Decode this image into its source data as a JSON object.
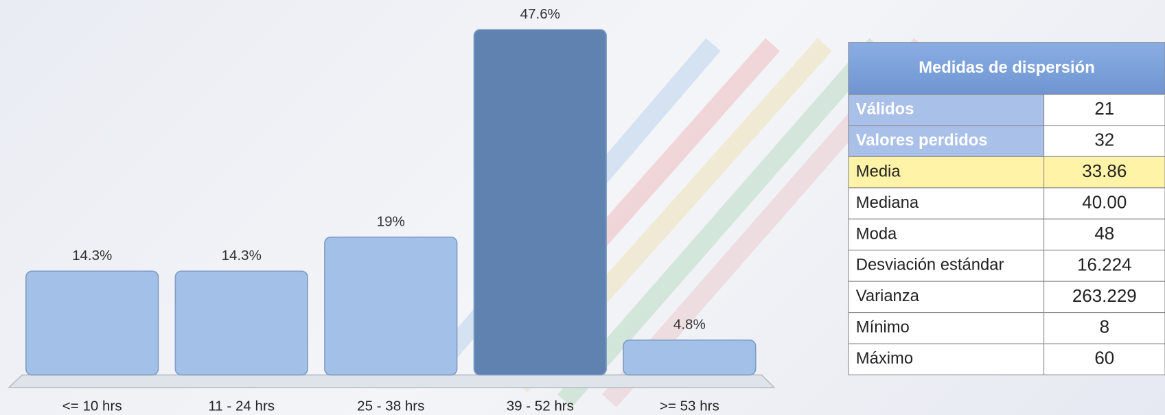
{
  "chart_data": {
    "type": "bar",
    "categories": [
      "<= 10 hrs",
      "11 - 24 hrs",
      "25 - 38 hrs",
      "39 - 52 hrs",
      ">= 53 hrs"
    ],
    "values": [
      14.3,
      14.3,
      19,
      47.6,
      4.8
    ],
    "value_labels": [
      "14.3%",
      "14.3%",
      "19%",
      "47.6%",
      "4.8%"
    ],
    "colors": [
      "#a3c0e9",
      "#a3c0e9",
      "#a3c0e9",
      "#5f82b0",
      "#a3c0e9"
    ]
  },
  "table": {
    "title": "Medidas de dispersión",
    "rows": [
      [
        "Válidos",
        "21"
      ],
      [
        "Valores perdidos",
        "32"
      ],
      [
        "Media",
        "33.86"
      ],
      [
        "Mediana",
        "40.00"
      ],
      [
        "Moda",
        "48"
      ],
      [
        "Desviación estándar",
        "16.224"
      ],
      [
        "Varianza",
        "263.229"
      ],
      [
        "Mínimo",
        "8"
      ],
      [
        "Máximo",
        "60"
      ]
    ]
  }
}
